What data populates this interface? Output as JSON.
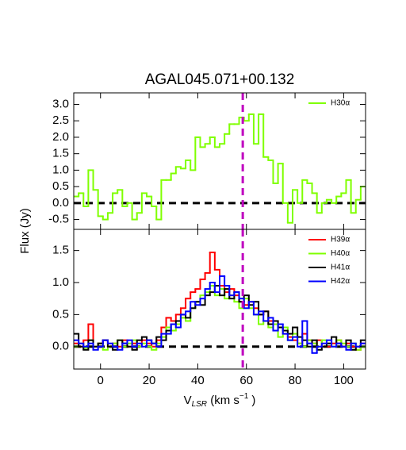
{
  "chart_data": [
    {
      "type": "step",
      "title": "AGAL045.071+00.132",
      "ylabel": "Flux (Jy)",
      "x": [
        -10,
        -8,
        -6,
        -4,
        -2,
        0,
        2,
        4,
        6,
        8,
        10,
        12,
        14,
        16,
        18,
        20,
        22,
        24,
        26,
        28,
        30,
        32,
        34,
        36,
        38,
        40,
        42,
        44,
        46,
        48,
        50,
        52,
        54,
        56,
        58,
        60,
        62,
        64,
        66,
        68,
        70,
        72,
        74,
        76,
        78,
        80,
        82,
        84,
        86,
        88,
        90,
        92,
        94,
        96,
        98,
        100,
        102,
        104,
        106,
        108
      ],
      "series": [
        {
          "name": "H30α",
          "color": "#7fff00",
          "values": [
            0.2,
            0.3,
            -0.1,
            1.0,
            0.4,
            -0.4,
            -0.5,
            -0.3,
            0.3,
            0.4,
            -0.1,
            0.0,
            -0.5,
            -0.3,
            0.3,
            0.2,
            -0.1,
            -0.5,
            0.7,
            0.7,
            0.9,
            1.1,
            1.05,
            1.3,
            1.0,
            2.0,
            1.7,
            1.8,
            2.0,
            1.7,
            1.8,
            2.1,
            2.4,
            2.4,
            2.6,
            2.5,
            2.7,
            1.8,
            2.7,
            1.4,
            1.3,
            0.6,
            1.2,
            0.0,
            -0.6,
            0.4,
            0.0,
            0.7,
            0.6,
            0.3,
            -0.3,
            0.0,
            0.1,
            0.0,
            0.2,
            0.3,
            0.7,
            -0.3,
            0.1,
            0.5
          ]
        }
      ],
      "xlim": [
        -11,
        109
      ],
      "ylim": [
        -0.8,
        3.35
      ],
      "yticks": [
        -0.5,
        {
          "value": 0,
          "label": "0.0"
        },
        0.5,
        {
          "value": 1,
          "label": "1.0"
        },
        1.5,
        {
          "value": 2,
          "label": "2.0"
        },
        2.5,
        {
          "value": 3,
          "label": "3.0"
        }
      ],
      "hline": 0,
      "vline": 58.5,
      "vline_color": "#bf00bf",
      "legend": "upper right"
    },
    {
      "type": "step",
      "xlabel": [
        "V",
        "LSR",
        " (km s",
        "−1",
        " )"
      ],
      "x": [
        -10,
        -8,
        -6,
        -4,
        -2,
        0,
        2,
        4,
        6,
        8,
        10,
        12,
        14,
        16,
        18,
        20,
        22,
        24,
        26,
        28,
        30,
        32,
        34,
        36,
        38,
        40,
        42,
        44,
        46,
        48,
        50,
        52,
        54,
        56,
        58,
        60,
        62,
        64,
        66,
        68,
        70,
        72,
        74,
        76,
        78,
        80,
        82,
        84,
        86,
        88,
        90,
        92,
        94,
        96,
        98,
        100,
        102,
        104,
        106,
        108
      ],
      "series": [
        {
          "name": "H39α",
          "color": "#ff0000",
          "values": [
            0.05,
            0.0,
            0.1,
            0.35,
            0.0,
            0.05,
            0.1,
            0.0,
            0.05,
            0.0,
            0.1,
            0.0,
            0.05,
            0.0,
            0.1,
            0.05,
            0.0,
            0.1,
            0.3,
            0.45,
            0.4,
            0.5,
            0.6,
            0.75,
            0.85,
            0.9,
            1.05,
            1.15,
            1.47,
            1.2,
            0.95,
            0.85,
            0.9,
            0.8,
            0.7,
            0.65,
            0.7,
            0.6,
            0.5,
            0.55,
            0.4,
            0.35,
            0.3,
            0.2,
            0.15,
            0.1,
            0.05,
            0.2,
            0.1,
            0.05,
            0.1,
            0.0,
            0.0,
            0.05,
            0.1,
            0.0,
            0.05,
            0.0,
            -0.05,
            0.05
          ]
        },
        {
          "name": "H40α",
          "color": "#7fff00",
          "values": [
            0.0,
            0.05,
            -0.02,
            0.1,
            0.0,
            0.05,
            -0.05,
            0.0,
            0.05,
            0.1,
            0.0,
            0.05,
            0.1,
            0.0,
            0.05,
            0.0,
            -0.05,
            0.05,
            0.15,
            0.3,
            0.25,
            0.35,
            0.45,
            0.4,
            0.6,
            0.7,
            0.8,
            0.85,
            0.95,
            0.8,
            0.9,
            0.75,
            0.8,
            0.7,
            0.6,
            0.75,
            0.6,
            0.5,
            0.35,
            0.4,
            0.3,
            0.35,
            0.15,
            0.3,
            0.1,
            0.2,
            0.05,
            0.0,
            0.1,
            0.05,
            0.0,
            0.1,
            0.05,
            0.0,
            0.1,
            0.05,
            0.0,
            0.05,
            -0.05,
            0.0
          ]
        },
        {
          "name": "H41α",
          "color": "#000000",
          "values": [
            0.2,
            0.0,
            -0.05,
            0.1,
            0.0,
            0.05,
            0.1,
            0.0,
            -0.05,
            0.1,
            0.05,
            0.0,
            -0.05,
            0.1,
            0.15,
            0.1,
            0.05,
            0.15,
            0.1,
            0.25,
            0.35,
            0.4,
            0.5,
            0.45,
            0.6,
            0.7,
            0.65,
            0.8,
            0.85,
            0.95,
            0.8,
            0.9,
            0.75,
            0.85,
            0.7,
            0.8,
            0.65,
            0.7,
            0.5,
            0.55,
            0.35,
            0.4,
            0.3,
            0.25,
            0.2,
            0.3,
            0.15,
            0.1,
            0.0,
            0.1,
            -0.05,
            0.0,
            0.05,
            0.15,
            0.05,
            0.0,
            0.1,
            -0.05,
            0.0,
            0.1
          ]
        },
        {
          "name": "H42α",
          "color": "#0000ff",
          "values": [
            0.1,
            0.05,
            0.0,
            0.05,
            -0.05,
            0.0,
            0.1,
            0.05,
            0.0,
            -0.05,
            0.05,
            0.1,
            0.0,
            0.05,
            0.0,
            0.1,
            0.05,
            0.0,
            0.2,
            0.2,
            0.35,
            0.3,
            0.5,
            0.55,
            0.7,
            0.65,
            0.75,
            0.9,
            1.0,
            0.85,
            1.1,
            0.95,
            0.8,
            0.85,
            0.75,
            0.6,
            0.7,
            0.5,
            0.55,
            0.4,
            0.45,
            0.25,
            0.35,
            0.2,
            0.1,
            0.15,
            0.0,
            0.4,
            0.05,
            -0.1,
            0.0,
            0.05,
            0.1,
            0.0,
            0.05,
            0.0,
            -0.05,
            0.05,
            0.0,
            0.05
          ]
        }
      ],
      "xlim": [
        -11,
        109
      ],
      "xticks": [
        0,
        20,
        40,
        60,
        80,
        100
      ],
      "ylim": [
        -0.35,
        1.83
      ],
      "yticks": [
        {
          "value": 0,
          "label": "0.0"
        },
        0.5,
        {
          "value": 1,
          "label": "1.0"
        },
        1.5
      ],
      "hline": 0,
      "vline": 58.5,
      "vline_color": "#bf00bf",
      "legend": "upper right"
    }
  ]
}
